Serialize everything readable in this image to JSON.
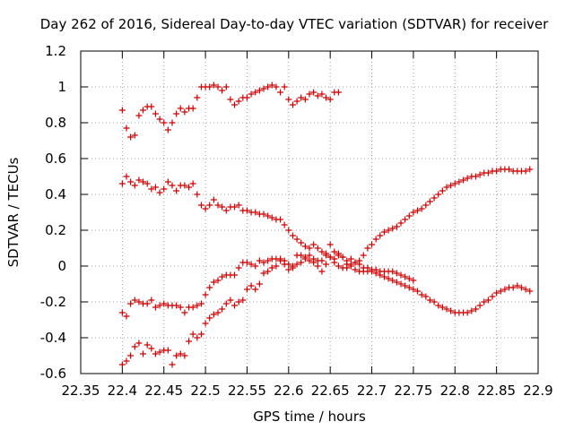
{
  "chart_data": {
    "type": "scatter",
    "title": "Day 262 of 2016, Sidereal Day-to-day VTEC variation (SDTVAR) for receiver",
    "xlabel": "GPS time / hours",
    "ylabel": "SDTVAR / TECUs",
    "xlim": [
      22.35,
      22.9
    ],
    "ylim": [
      -0.6,
      1.2
    ],
    "xticks": [
      22.35,
      22.4,
      22.45,
      22.5,
      22.55,
      22.6,
      22.65,
      22.7,
      22.75,
      22.8,
      22.85,
      22.9
    ],
    "xtick_labels": [
      "22.35",
      "22.4",
      "22.45",
      "22.5",
      "22.55",
      "22.6",
      "22.65",
      "22.7",
      "22.75",
      "22.8",
      "22.85",
      "22.9"
    ],
    "yticks": [
      -0.6,
      -0.4,
      -0.2,
      0,
      0.2,
      0.4,
      0.6,
      0.8,
      1,
      1.2
    ],
    "ytick_labels": [
      "-0.6",
      "-0.4",
      "-0.2",
      "0",
      "0.2",
      "0.4",
      "0.6",
      "0.8",
      "1",
      "1.2"
    ],
    "grid": true,
    "marker": "+",
    "marker_color": "#cc0000",
    "series": [
      {
        "name": "series-1",
        "x": [
          22.4,
          22.405,
          22.41,
          22.415,
          22.42,
          22.425,
          22.43,
          22.435,
          22.44,
          22.445,
          22.45,
          22.455,
          22.46,
          22.465,
          22.47,
          22.475,
          22.48,
          22.485,
          22.49,
          22.495,
          22.5,
          22.505,
          22.51,
          22.515,
          22.52,
          22.525,
          22.53,
          22.535,
          22.54,
          22.545,
          22.55,
          22.555,
          22.56,
          22.565,
          22.57,
          22.575,
          22.58,
          22.585,
          22.59,
          22.595,
          22.6,
          22.605,
          22.61,
          22.615,
          22.62,
          22.625,
          22.63,
          22.635,
          22.64,
          22.645,
          22.65,
          22.655,
          22.66
        ],
        "y": [
          0.87,
          0.77,
          0.72,
          0.73,
          0.84,
          0.87,
          0.89,
          0.89,
          0.85,
          0.82,
          0.8,
          0.76,
          0.8,
          0.85,
          0.88,
          0.86,
          0.88,
          0.88,
          0.94,
          1.0,
          1.0,
          1.0,
          1.01,
          1.0,
          0.98,
          1.0,
          0.93,
          0.9,
          0.92,
          0.94,
          0.94,
          0.96,
          0.97,
          0.98,
          0.99,
          1.0,
          1.01,
          1.0,
          0.97,
          1.0,
          0.93,
          0.9,
          0.92,
          0.94,
          0.93,
          0.96,
          0.97,
          0.95,
          0.96,
          0.94,
          0.93,
          0.97,
          0.97
        ]
      },
      {
        "name": "series-2",
        "x": [
          22.4,
          22.405,
          22.41,
          22.415,
          22.42,
          22.425,
          22.43,
          22.435,
          22.44,
          22.445,
          22.45,
          22.455,
          22.46,
          22.465,
          22.47,
          22.475,
          22.48,
          22.485,
          22.49,
          22.495,
          22.5,
          22.505,
          22.51,
          22.515,
          22.52,
          22.525,
          22.53,
          22.535,
          22.54,
          22.545,
          22.55,
          22.555,
          22.56,
          22.565,
          22.57,
          22.575,
          22.58,
          22.585,
          22.59,
          22.595,
          22.6,
          22.605,
          22.61,
          22.615,
          22.62,
          22.625,
          22.63,
          22.635,
          22.64,
          22.645,
          22.65,
          22.655,
          22.66,
          22.665,
          22.67,
          22.675,
          22.68,
          22.685,
          22.69,
          22.695,
          22.7,
          22.705,
          22.71,
          22.715,
          22.72,
          22.725,
          22.73,
          22.735,
          22.74,
          22.745,
          22.75,
          22.755,
          22.76,
          22.765,
          22.77,
          22.775,
          22.78,
          22.785,
          22.79,
          22.795,
          22.8,
          22.805,
          22.81,
          22.815,
          22.82,
          22.825,
          22.83,
          22.835,
          22.84,
          22.845,
          22.85,
          22.855,
          22.86,
          22.865,
          22.87,
          22.875,
          22.88,
          22.885,
          22.89
        ],
        "y": [
          0.46,
          0.5,
          0.47,
          0.45,
          0.48,
          0.47,
          0.46,
          0.43,
          0.44,
          0.41,
          0.43,
          0.47,
          0.45,
          0.42,
          0.45,
          0.45,
          0.44,
          0.46,
          0.4,
          0.34,
          0.32,
          0.34,
          0.37,
          0.34,
          0.33,
          0.31,
          0.33,
          0.33,
          0.34,
          0.31,
          0.31,
          0.3,
          0.3,
          0.29,
          0.29,
          0.28,
          0.27,
          0.26,
          0.26,
          0.23,
          0.2,
          0.17,
          0.15,
          0.13,
          0.11,
          0.1,
          0.12,
          0.1,
          0.08,
          0.06,
          0.05,
          0.02,
          0.0,
          -0.01,
          -0.01,
          0.0,
          -0.02,
          -0.03,
          -0.03,
          -0.03,
          -0.03,
          -0.04,
          -0.05,
          -0.06,
          -0.07,
          -0.08,
          -0.09,
          -0.1,
          -0.11,
          -0.12,
          -0.13,
          -0.14,
          -0.16,
          -0.17,
          -0.19,
          -0.2,
          -0.22,
          -0.23,
          -0.24,
          -0.25,
          -0.26,
          -0.26,
          -0.26,
          -0.26,
          -0.25,
          -0.24,
          -0.22,
          -0.2,
          -0.19,
          -0.17,
          -0.15,
          -0.14,
          -0.13,
          -0.12,
          -0.12,
          -0.11,
          -0.12,
          -0.13,
          -0.14
        ]
      },
      {
        "name": "series-3",
        "x": [
          22.4,
          22.405,
          22.41,
          22.415,
          22.42,
          22.425,
          22.43,
          22.435,
          22.44,
          22.445,
          22.45,
          22.455,
          22.46,
          22.465,
          22.47,
          22.475,
          22.48,
          22.485,
          22.49,
          22.495,
          22.5,
          22.505,
          22.51,
          22.515,
          22.52,
          22.525,
          22.53,
          22.535,
          22.54,
          22.545,
          22.55,
          22.555,
          22.56,
          22.565,
          22.57,
          22.575,
          22.58,
          22.585,
          22.59,
          22.595,
          22.6,
          22.605,
          22.61,
          22.615,
          22.62,
          22.625,
          22.63,
          22.635,
          22.64,
          22.645,
          22.65,
          22.655,
          22.66,
          22.665,
          22.67,
          22.675,
          22.68,
          22.685,
          22.69,
          22.695,
          22.7,
          22.705,
          22.71,
          22.715,
          22.72,
          22.725,
          22.73,
          22.735,
          22.74,
          22.745,
          22.75,
          22.755,
          22.76,
          22.765,
          22.77,
          22.775,
          22.78,
          22.785,
          22.79,
          22.795,
          22.8,
          22.805,
          22.81,
          22.815,
          22.82,
          22.825,
          22.83,
          22.835,
          22.84,
          22.845,
          22.85,
          22.855,
          22.86,
          22.865,
          22.87,
          22.875,
          22.88,
          22.885,
          22.89
        ],
        "y": [
          -0.26,
          -0.28,
          -0.21,
          -0.19,
          -0.2,
          -0.21,
          -0.21,
          -0.19,
          -0.23,
          -0.22,
          -0.21,
          -0.22,
          -0.22,
          -0.22,
          -0.23,
          -0.26,
          -0.23,
          -0.23,
          -0.22,
          -0.21,
          -0.16,
          -0.12,
          -0.09,
          -0.08,
          -0.06,
          -0.05,
          -0.05,
          -0.05,
          -0.01,
          0.02,
          0.02,
          0.01,
          0.0,
          0.03,
          0.02,
          0.03,
          0.04,
          0.04,
          0.03,
          0.01,
          -0.02,
          -0.01,
          0.01,
          0.02,
          0.04,
          0.03,
          0.02,
          0.0,
          -0.03,
          0.01,
          0.05,
          0.04,
          0.06,
          0.05,
          0.03,
          0.04,
          0.02,
          0.03,
          0.06,
          0.1,
          0.12,
          0.15,
          0.17,
          0.19,
          0.2,
          0.21,
          0.22,
          0.24,
          0.26,
          0.28,
          0.3,
          0.31,
          0.32,
          0.34,
          0.36,
          0.38,
          0.4,
          0.42,
          0.44,
          0.45,
          0.46,
          0.47,
          0.48,
          0.49,
          0.5,
          0.5,
          0.51,
          0.52,
          0.52,
          0.53,
          0.53,
          0.54,
          0.54,
          0.54,
          0.53,
          0.53,
          0.53,
          0.53,
          0.54
        ]
      },
      {
        "name": "series-4",
        "x": [
          22.4,
          22.405,
          22.41,
          22.415,
          22.42,
          22.425,
          22.43,
          22.435,
          22.44,
          22.445,
          22.45,
          22.455,
          22.46,
          22.465,
          22.47,
          22.475,
          22.48,
          22.485,
          22.49,
          22.495,
          22.5,
          22.505,
          22.51,
          22.515,
          22.52,
          22.525,
          22.53,
          22.535,
          22.54,
          22.545,
          22.55,
          22.555,
          22.56,
          22.565,
          22.57,
          22.575,
          22.58,
          22.585,
          22.59,
          22.595,
          22.6,
          22.605,
          22.61,
          22.615,
          22.62,
          22.625,
          22.63,
          22.635,
          22.64,
          22.645,
          22.65,
          22.655,
          22.66,
          22.665,
          22.67,
          22.675,
          22.68,
          22.685,
          22.69,
          22.695,
          22.7,
          22.705,
          22.71,
          22.715,
          22.72,
          22.725,
          22.73,
          22.735,
          22.74,
          22.745,
          22.75
        ],
        "y": [
          -0.55,
          -0.53,
          -0.5,
          -0.45,
          -0.43,
          -0.49,
          -0.44,
          -0.46,
          -0.49,
          -0.48,
          -0.47,
          -0.47,
          -0.55,
          -0.5,
          -0.49,
          -0.5,
          -0.42,
          -0.38,
          -0.4,
          -0.38,
          -0.32,
          -0.29,
          -0.27,
          -0.26,
          -0.24,
          -0.21,
          -0.19,
          -0.22,
          -0.2,
          -0.19,
          -0.13,
          -0.11,
          -0.13,
          -0.1,
          -0.04,
          -0.03,
          -0.01,
          0.0,
          0.04,
          0.03,
          0.01,
          0.0,
          0.06,
          0.06,
          0.05,
          0.06,
          0.04,
          0.03,
          0.03,
          0.07,
          0.12,
          0.08,
          0.07,
          0.05,
          0.01,
          0.01,
          0.02,
          0.01,
          -0.01,
          -0.01,
          -0.02,
          -0.02,
          -0.03,
          -0.03,
          -0.03,
          -0.03,
          -0.04,
          -0.05,
          -0.06,
          -0.07,
          -0.08
        ]
      }
    ]
  }
}
